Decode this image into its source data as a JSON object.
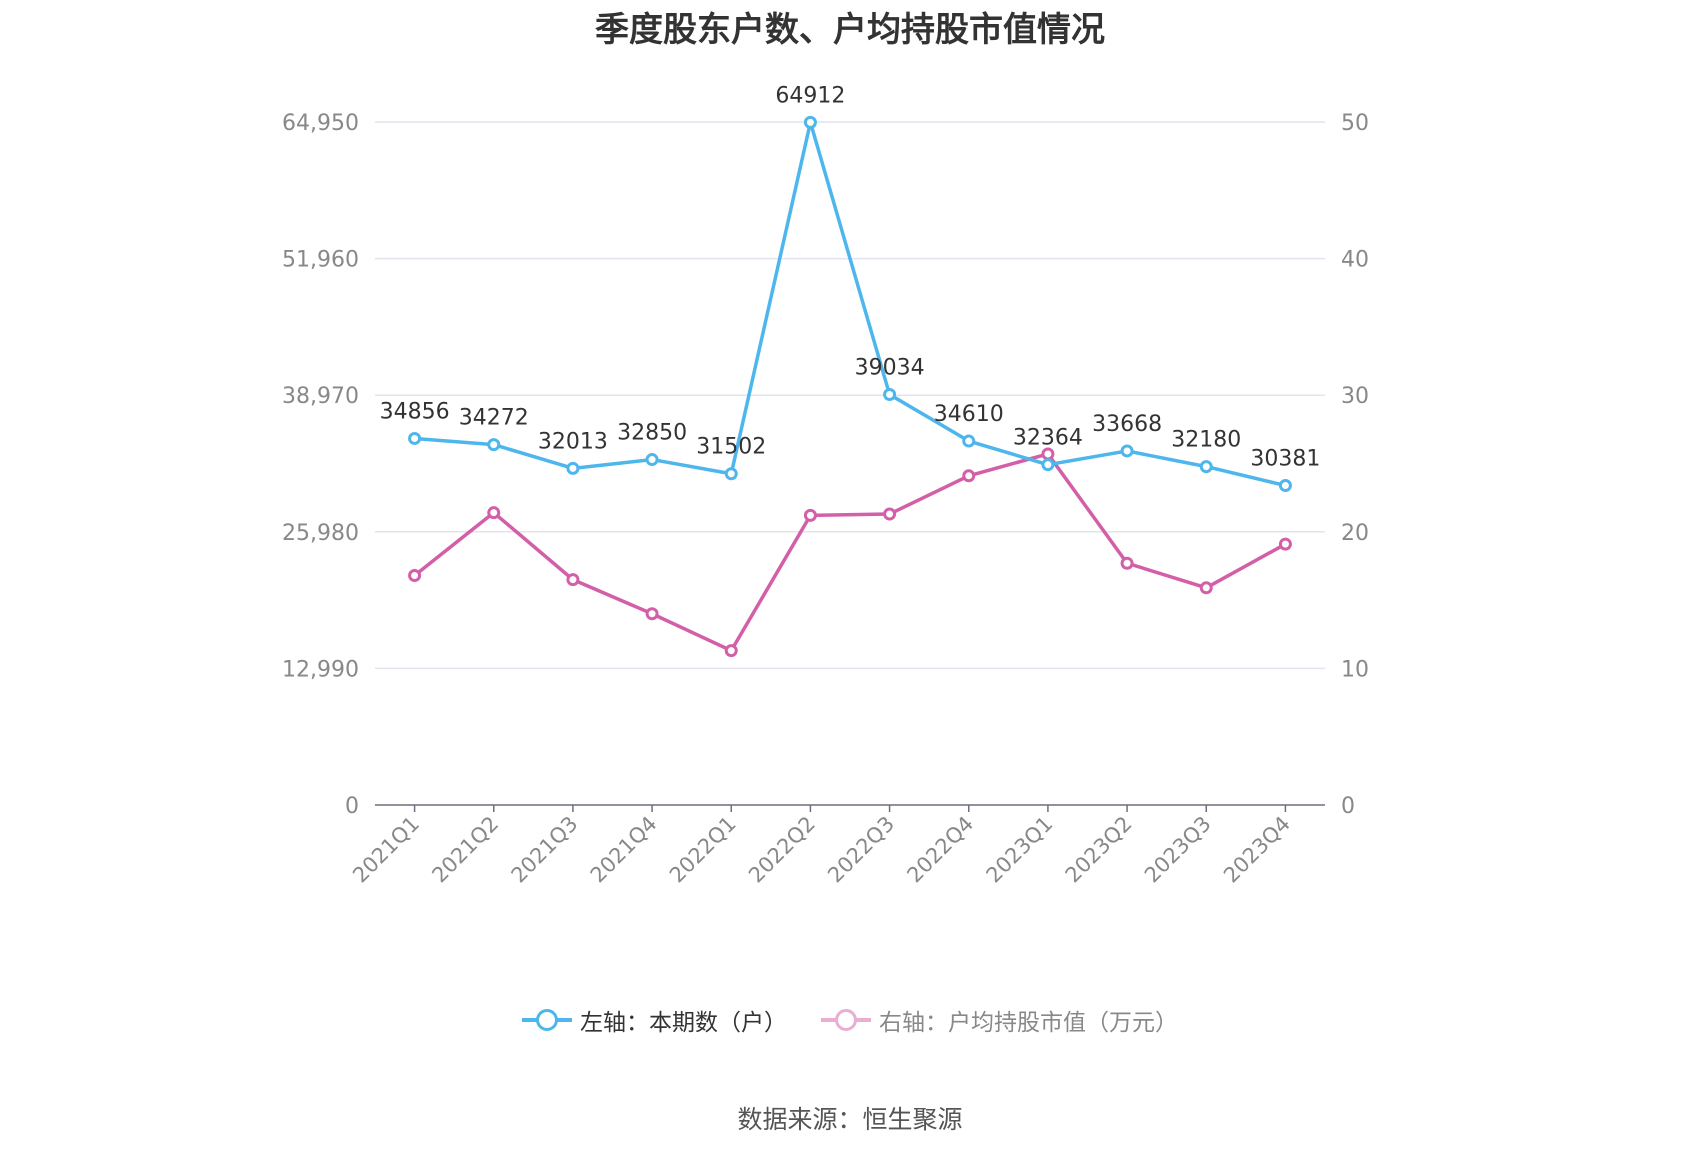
{
  "title": "季度股东户数、户均持股市值情况",
  "source": "数据来源：恒生聚源",
  "colors": {
    "left": "#4db6ec",
    "right": "#d35fa8",
    "grid": "#e1e4ee",
    "axis": "#6e6e7e"
  },
  "legend": {
    "left": "左轴：本期数（户）",
    "right": "右轴：户均持股市值（万元）"
  },
  "chart_data": {
    "type": "line",
    "categories": [
      "2021Q1",
      "2021Q2",
      "2021Q3",
      "2021Q4",
      "2022Q1",
      "2022Q2",
      "2022Q3",
      "2022Q4",
      "2023Q1",
      "2023Q2",
      "2023Q3",
      "2023Q4"
    ],
    "left_axis": {
      "ylim": [
        0,
        64950
      ],
      "ticks": [
        0,
        12990,
        25980,
        38970,
        51960,
        64950
      ],
      "tick_labels": [
        "0",
        "12,990",
        "25,980",
        "38,970",
        "51,960",
        "64,950"
      ]
    },
    "right_axis": {
      "ylim": [
        0,
        50
      ],
      "ticks": [
        0,
        10,
        20,
        30,
        40,
        50
      ],
      "tick_labels": [
        "0",
        "10",
        "20",
        "30",
        "40",
        "50"
      ]
    },
    "series": [
      {
        "name": "左轴：本期数（户）",
        "axis": "left",
        "values": [
          34856,
          34272,
          32013,
          32850,
          31502,
          64912,
          39034,
          34610,
          32364,
          33668,
          32180,
          30381
        ],
        "labels": [
          "34856",
          "34272",
          "32013",
          "32850",
          "31502",
          "64912",
          "39034",
          "34610",
          "32364",
          "33668",
          "32180",
          "30381"
        ]
      },
      {
        "name": "右轴：户均持股市值（万元）",
        "axis": "right",
        "values": [
          16.8,
          21.4,
          16.5,
          14.0,
          11.3,
          21.2,
          21.3,
          24.1,
          25.7,
          17.7,
          15.9,
          19.1
        ]
      }
    ],
    "grid": true,
    "legend_position": "bottom"
  }
}
